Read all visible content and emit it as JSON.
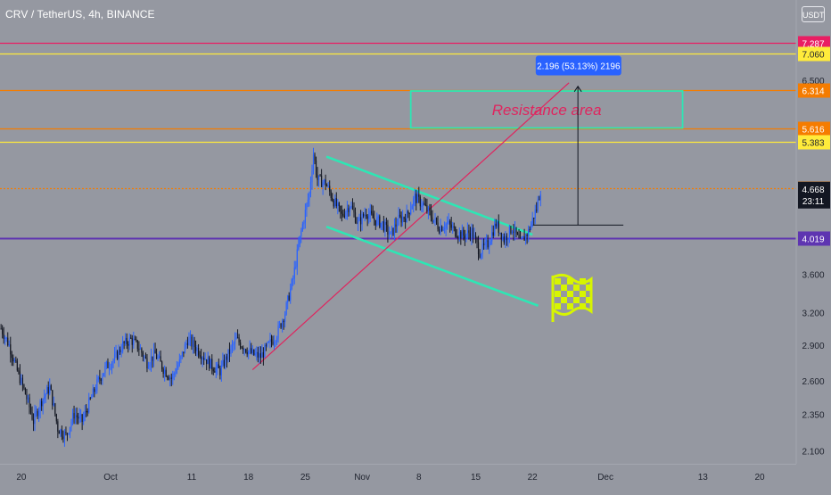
{
  "header": {
    "symbol": "CRV / TetherUS, 4h, BINANCE",
    "currency": "USDT"
  },
  "colors": {
    "background": "#9598a1",
    "candle_up": "#2962ff",
    "candle_down": "#131722",
    "channel": "#2ee6b4",
    "resistance_box": "#2ee6b4",
    "resistance_text": "#e0245e",
    "projection_line": "#e0245e",
    "flag": "#d7f500",
    "line_pink": "#e91e63",
    "line_yellow": "#ffeb3b",
    "line_orange": "#f57c00",
    "line_purple": "#5e35b1",
    "measure_label_bg": "#2962ff"
  },
  "price_levels": [
    {
      "name": "level-7287",
      "label": "7.287",
      "value": 7.287,
      "color": "#e91e63",
      "style": "solid"
    },
    {
      "name": "level-7060",
      "label": "7.060",
      "value": 7.06,
      "color": "#ffeb3b",
      "style": "solid"
    },
    {
      "name": "level-6314",
      "label": "6.314",
      "value": 6.314,
      "color": "#f57c00",
      "style": "solid"
    },
    {
      "name": "level-5616",
      "label": "5.616",
      "value": 5.616,
      "color": "#f57c00",
      "style": "solid"
    },
    {
      "name": "level-5383",
      "label": "5.383",
      "value": 5.383,
      "color": "#ffeb3b",
      "style": "solid"
    },
    {
      "name": "level-4684",
      "label": "4.684",
      "value": 4.684,
      "color": "#f57c00",
      "style": "dotted"
    },
    {
      "name": "level-4019",
      "label": "4.019",
      "value": 4.019,
      "color": "#5e35b1",
      "style": "solid"
    }
  ],
  "current_price": {
    "label": "4.668",
    "value": 4.668,
    "countdown": "23:11"
  },
  "annotations": {
    "resistance_label": "Resistance area",
    "measure_label": "2.196 (53.13%) 2196",
    "flag_icon": "checkered-flag-icon"
  },
  "chart_data": {
    "type": "candlestick",
    "title": "CRV / TetherUS, 4h, BINANCE",
    "scale": "log",
    "y_ticks": [
      {
        "label": "6.500",
        "value": 6.5
      },
      {
        "label": "3.600",
        "value": 3.6
      },
      {
        "label": "3.200",
        "value": 3.2
      },
      {
        "label": "2.900",
        "value": 2.9
      },
      {
        "label": "2.600",
        "value": 2.6
      },
      {
        "label": "2.350",
        "value": 2.35
      },
      {
        "label": "2.100",
        "value": 2.1
      }
    ],
    "x_ticks": [
      "20",
      "Oct",
      "11",
      "18",
      "25",
      "Nov",
      "8",
      "15",
      "22",
      "Dec",
      "13",
      "20"
    ],
    "x_tick_days": [
      -11,
      0,
      10,
      17,
      24,
      31,
      38,
      45,
      52,
      61,
      73,
      80
    ],
    "ylim": [
      2.02,
      8.3
    ],
    "series_price_path": [
      [
        -13.5,
        3.05
      ],
      [
        -12.5,
        2.9
      ],
      [
        -11.5,
        2.68
      ],
      [
        -10.5,
        2.5
      ],
      [
        -9.5,
        2.3
      ],
      [
        -8.5,
        2.45
      ],
      [
        -7.5,
        2.55
      ],
      [
        -6.5,
        2.25
      ],
      [
        -5.5,
        2.2
      ],
      [
        -4.5,
        2.35
      ],
      [
        -3.5,
        2.3
      ],
      [
        -2.5,
        2.45
      ],
      [
        -1.5,
        2.6
      ],
      [
        -0.5,
        2.72
      ],
      [
        0.5,
        2.78
      ],
      [
        1.5,
        2.9
      ],
      [
        2.5,
        2.95
      ],
      [
        3.5,
        2.88
      ],
      [
        4.5,
        2.75
      ],
      [
        5.5,
        2.82
      ],
      [
        6.5,
        2.7
      ],
      [
        7.5,
        2.62
      ],
      [
        8.5,
        2.75
      ],
      [
        9.5,
        2.95
      ],
      [
        10.5,
        2.88
      ],
      [
        11.5,
        2.8
      ],
      [
        12.5,
        2.72
      ],
      [
        13.5,
        2.68
      ],
      [
        14.5,
        2.82
      ],
      [
        15.5,
        2.95
      ],
      [
        16.5,
        2.88
      ],
      [
        17.5,
        2.82
      ],
      [
        18.5,
        2.8
      ],
      [
        19.5,
        2.9
      ],
      [
        20.5,
        3.0
      ],
      [
        21.5,
        3.2
      ],
      [
        22.5,
        3.55
      ],
      [
        23.5,
        4.1
      ],
      [
        24.5,
        4.6
      ],
      [
        25.0,
        5.2
      ],
      [
        25.5,
        4.8
      ],
      [
        26.5,
        4.75
      ],
      [
        27.5,
        4.5
      ],
      [
        28.5,
        4.3
      ],
      [
        29.5,
        4.45
      ],
      [
        30.5,
        4.2
      ],
      [
        31.5,
        4.35
      ],
      [
        32.5,
        4.25
      ],
      [
        33.5,
        4.2
      ],
      [
        34.5,
        4.05
      ],
      [
        35.5,
        4.25
      ],
      [
        36.5,
        4.3
      ],
      [
        37.5,
        4.55
      ],
      [
        38.5,
        4.45
      ],
      [
        39.5,
        4.3
      ],
      [
        40.5,
        4.15
      ],
      [
        41.5,
        4.2
      ],
      [
        42.5,
        4.1
      ],
      [
        43.5,
        4.05
      ],
      [
        44.5,
        4.1
      ],
      [
        45.5,
        3.85
      ],
      [
        46.5,
        3.95
      ],
      [
        47.5,
        4.2
      ],
      [
        48.5,
        4.0
      ],
      [
        49.5,
        4.15
      ],
      [
        50.5,
        3.95
      ],
      [
        51.5,
        4.1
      ],
      [
        52.5,
        4.4
      ],
      [
        53.0,
        4.668
      ]
    ]
  }
}
